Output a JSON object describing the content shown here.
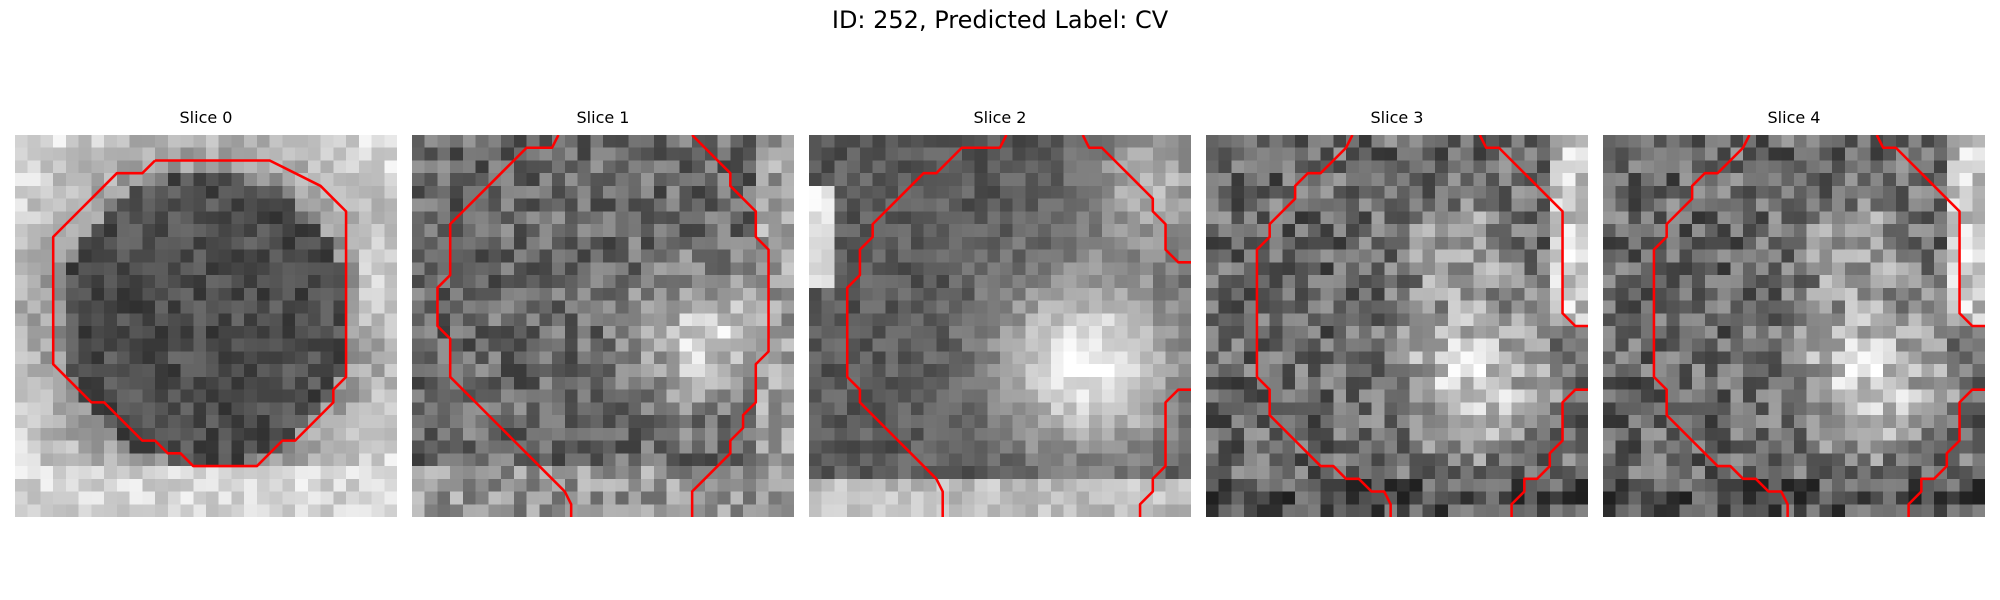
{
  "figure": {
    "title": "ID: 252, Predicted Label: CV"
  },
  "panels": [
    {
      "title": "Slice 0"
    },
    {
      "title": "Slice 1"
    },
    {
      "title": "Slice 2"
    },
    {
      "title": "Slice 3"
    },
    {
      "title": "Slice 4"
    }
  ],
  "colors": {
    "contour": "#ff0000",
    "background": "#ffffff"
  }
}
